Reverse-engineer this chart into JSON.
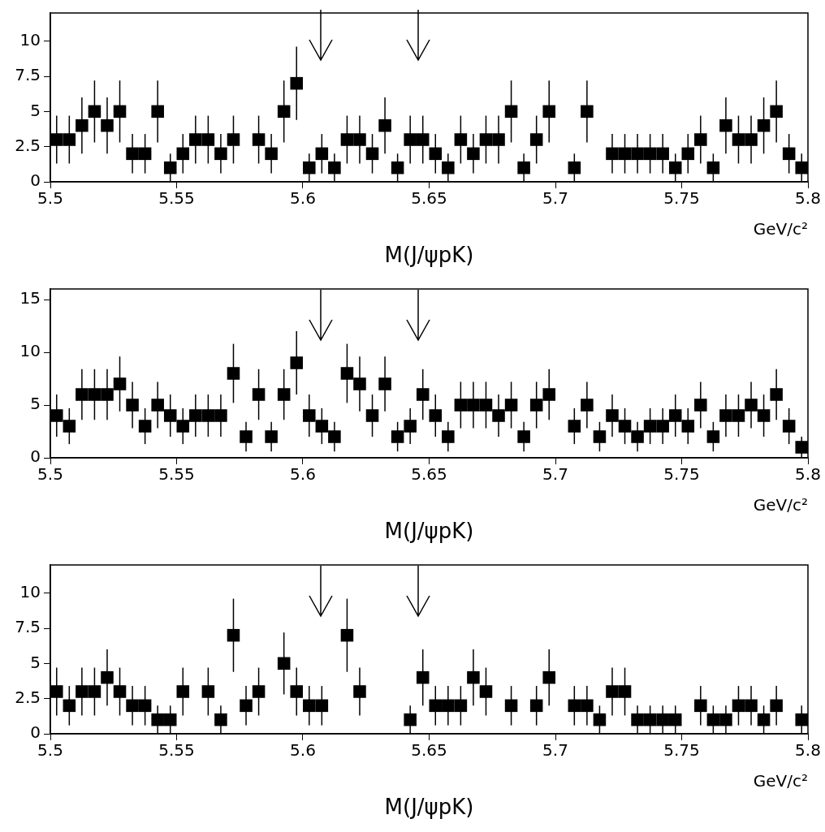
{
  "chart_data": [
    {
      "type": "scatter",
      "xlabel": "M(J/ψpK)",
      "annotations": [
        "GeV/c²"
      ],
      "marker": "square",
      "color": "#000000",
      "grid": false,
      "xlim": [
        5.5,
        5.8
      ],
      "xticks": [
        5.5,
        5.55,
        5.6,
        5.65,
        5.7,
        5.75,
        5.8
      ],
      "ylim": [
        0,
        12
      ],
      "yticks": [
        0,
        2.5,
        5,
        7.5,
        10
      ],
      "x": [
        5.5025,
        5.5075,
        5.5125,
        5.5175,
        5.5225,
        5.5275,
        5.5325,
        5.5375,
        5.5425,
        5.5475,
        5.5525,
        5.5575,
        5.5625,
        5.5675,
        5.5725,
        5.5775,
        5.5825,
        5.5875,
        5.5925,
        5.5975,
        5.6025,
        5.6075,
        5.6125,
        5.6175,
        5.6225,
        5.6275,
        5.6325,
        5.6375,
        5.6425,
        5.6475,
        5.6525,
        5.6575,
        5.6625,
        5.6675,
        5.6725,
        5.6775,
        5.6825,
        5.6875,
        5.6925,
        5.6975,
        5.7025,
        5.7075,
        5.7125,
        5.7175,
        5.7225,
        5.7275,
        5.7325,
        5.7375,
        5.7425,
        5.7475,
        5.7525,
        5.7575,
        5.7625,
        5.7675,
        5.7725,
        5.7775,
        5.7825,
        5.7875,
        5.7925,
        5.7975
      ],
      "values": [
        3,
        3,
        4,
        5,
        4,
        5,
        2,
        2,
        5,
        1,
        2,
        3,
        3,
        2,
        3,
        null,
        3,
        2,
        5,
        7,
        1,
        2,
        1,
        3,
        3,
        2,
        4,
        1,
        3,
        3,
        2,
        1,
        3,
        2,
        3,
        3,
        5,
        1,
        3,
        5,
        null,
        1,
        5,
        null,
        2,
        2,
        2,
        2,
        2,
        1,
        2,
        3,
        1,
        4,
        3,
        3,
        4,
        5,
        2,
        1
      ],
      "errors": [
        1.7,
        1.7,
        2,
        2.2,
        2,
        2.2,
        1.4,
        1.4,
        2.2,
        1,
        1.4,
        1.7,
        1.7,
        1.4,
        1.7,
        null,
        1.7,
        1.4,
        2.2,
        2.6,
        1,
        1.4,
        1,
        1.7,
        1.7,
        1.4,
        2,
        1,
        1.7,
        1.7,
        1.4,
        1,
        1.7,
        1.4,
        1.7,
        1.7,
        2.2,
        1,
        1.7,
        2.2,
        null,
        1,
        2.2,
        null,
        1.4,
        1.4,
        1.4,
        1.4,
        1.4,
        1,
        1.4,
        1.7,
        1,
        2,
        1.7,
        1.7,
        2,
        2.2,
        1.4,
        1
      ]
    },
    {
      "type": "scatter",
      "xlabel": "M(J/ψpK)",
      "annotations": [
        "GeV/c²"
      ],
      "marker": "square",
      "color": "#000000",
      "grid": false,
      "xlim": [
        5.5,
        5.8
      ],
      "xticks": [
        5.5,
        5.55,
        5.6,
        5.65,
        5.7,
        5.75,
        5.8
      ],
      "ylim": [
        0,
        16
      ],
      "yticks": [
        0,
        5,
        10,
        15
      ],
      "x": [
        5.5025,
        5.5075,
        5.5125,
        5.5175,
        5.5225,
        5.5275,
        5.5325,
        5.5375,
        5.5425,
        5.5475,
        5.5525,
        5.5575,
        5.5625,
        5.5675,
        5.5725,
        5.5775,
        5.5825,
        5.5875,
        5.5925,
        5.5975,
        5.6025,
        5.6075,
        5.6125,
        5.6175,
        5.6225,
        5.6275,
        5.6325,
        5.6375,
        5.6425,
        5.6475,
        5.6525,
        5.6575,
        5.6625,
        5.6675,
        5.6725,
        5.6775,
        5.6825,
        5.6875,
        5.6925,
        5.6975,
        5.7025,
        5.7075,
        5.7125,
        5.7175,
        5.7225,
        5.7275,
        5.7325,
        5.7375,
        5.7425,
        5.7475,
        5.7525,
        5.7575,
        5.7625,
        5.7675,
        5.7725,
        5.7775,
        5.7825,
        5.7875,
        5.7925,
        5.7975
      ],
      "values": [
        4,
        3,
        6,
        6,
        6,
        7,
        5,
        3,
        5,
        4,
        3,
        4,
        4,
        4,
        8,
        2,
        6,
        2,
        6,
        9,
        4,
        3,
        2,
        8,
        7,
        4,
        7,
        2,
        3,
        6,
        4,
        2,
        5,
        5,
        5,
        4,
        5,
        2,
        5,
        6,
        null,
        3,
        5,
        2,
        4,
        3,
        2,
        3,
        3,
        4,
        3,
        5,
        2,
        4,
        4,
        5,
        4,
        6,
        3,
        1
      ],
      "errors": [
        2,
        1.7,
        2.4,
        2.4,
        2.4,
        2.6,
        2.2,
        1.7,
        2.2,
        2,
        1.7,
        2,
        2,
        2,
        2.8,
        1.4,
        2.4,
        1.4,
        2.4,
        3,
        2,
        1.7,
        1.4,
        2.8,
        2.6,
        2,
        2.6,
        1.4,
        1.7,
        2.4,
        2,
        1.4,
        2.2,
        2.2,
        2.2,
        2,
        2.2,
        1.4,
        2.2,
        2.4,
        null,
        1.7,
        2.2,
        1.4,
        2,
        1.7,
        1.4,
        1.7,
        1.7,
        2,
        1.7,
        2.2,
        1.4,
        2,
        2,
        2.2,
        2,
        2.4,
        1.7,
        1
      ]
    },
    {
      "type": "scatter",
      "xlabel": "M(J/ψpK)",
      "annotations": [
        "GeV/c²"
      ],
      "marker": "square",
      "color": "#000000",
      "grid": false,
      "xlim": [
        5.5,
        5.8
      ],
      "xticks": [
        5.5,
        5.55,
        5.6,
        5.65,
        5.7,
        5.75,
        5.8
      ],
      "ylim": [
        0,
        12
      ],
      "yticks": [
        0,
        2.5,
        5,
        7.5,
        10
      ],
      "x": [
        5.5025,
        5.5075,
        5.5125,
        5.5175,
        5.5225,
        5.5275,
        5.5325,
        5.5375,
        5.5425,
        5.5475,
        5.5525,
        5.5575,
        5.5625,
        5.5675,
        5.5725,
        5.5775,
        5.5825,
        5.5875,
        5.5925,
        5.5975,
        5.6025,
        5.6075,
        5.6125,
        5.6175,
        5.6225,
        5.6275,
        5.6325,
        5.6375,
        5.6425,
        5.6475,
        5.6525,
        5.6575,
        5.6625,
        5.6675,
        5.6725,
        5.6775,
        5.6825,
        5.6875,
        5.6925,
        5.6975,
        5.7025,
        5.7075,
        5.7125,
        5.7175,
        5.7225,
        5.7275,
        5.7325,
        5.7375,
        5.7425,
        5.7475,
        5.7525,
        5.7575,
        5.7625,
        5.7675,
        5.7725,
        5.7775,
        5.7825,
        5.7875,
        5.7925,
        5.7975
      ],
      "values": [
        3,
        2,
        3,
        3,
        4,
        3,
        2,
        2,
        1,
        1,
        3,
        null,
        3,
        1,
        7,
        2,
        3,
        null,
        5,
        3,
        2,
        2,
        null,
        7,
        3,
        null,
        null,
        null,
        1,
        4,
        2,
        2,
        2,
        4,
        3,
        null,
        2,
        null,
        2,
        4,
        null,
        2,
        2,
        1,
        3,
        3,
        1,
        1,
        1,
        1,
        null,
        2,
        1,
        1,
        2,
        2,
        1,
        2,
        null,
        1
      ],
      "errors": [
        1.7,
        1.4,
        1.7,
        1.7,
        2,
        1.7,
        1.4,
        1.4,
        1,
        1,
        1.7,
        null,
        1.7,
        1,
        2.6,
        1.4,
        1.7,
        null,
        2.2,
        1.7,
        1.4,
        1.4,
        null,
        2.6,
        1.7,
        null,
        null,
        null,
        1,
        2,
        1.4,
        1.4,
        1.4,
        2,
        1.7,
        null,
        1.4,
        null,
        1.4,
        2,
        null,
        1.4,
        1.4,
        1,
        1.7,
        1.7,
        1,
        1,
        1,
        1,
        null,
        1.4,
        1,
        1,
        1.4,
        1.4,
        1,
        1.4,
        null,
        1
      ]
    }
  ]
}
